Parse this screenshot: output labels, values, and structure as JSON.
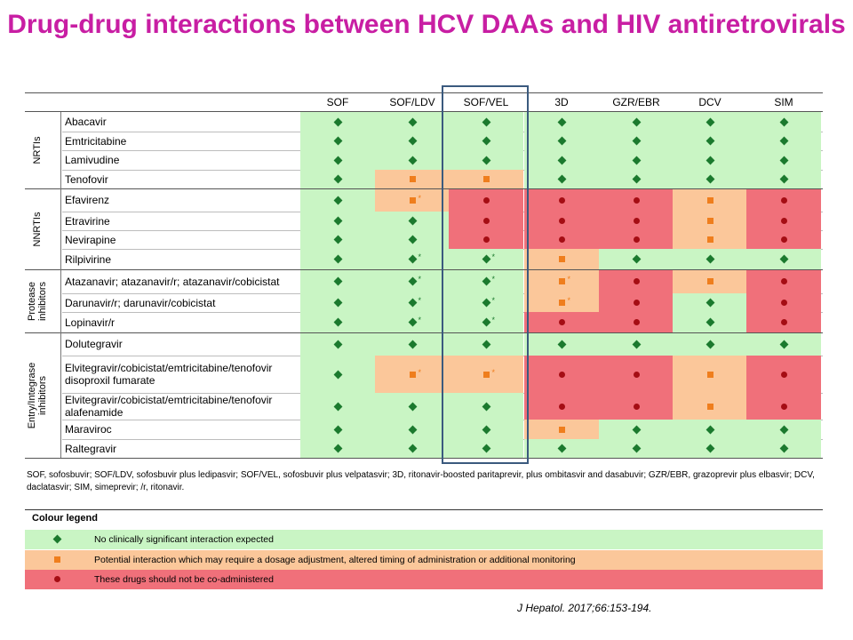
{
  "title": "Drug-drug interactions between HCV DAAs and HIV antiretrovirals",
  "columns": [
    "SOF",
    "SOF/LDV",
    "SOF/VEL",
    "3D",
    "GZR/EBR",
    "DCV",
    "SIM"
  ],
  "groups": [
    {
      "label": "NRTIs",
      "rows": [
        0,
        3
      ]
    },
    {
      "label": "NNRTIs",
      "rows": [
        4,
        7
      ]
    },
    {
      "label": "Protease\ninhibitors",
      "rows": [
        8,
        10
      ]
    },
    {
      "label": "Entry/Integrase\ninhibitors",
      "rows": [
        11,
        15
      ]
    }
  ],
  "rows": [
    {
      "drug": "Abacavir",
      "cells": [
        "G",
        "G",
        "G",
        "G",
        "G",
        "G",
        "G"
      ]
    },
    {
      "drug": "Emtricitabine",
      "cells": [
        "G",
        "G",
        "G",
        "G",
        "G",
        "G",
        "G"
      ]
    },
    {
      "drug": "Lamivudine",
      "cells": [
        "G",
        "G",
        "G",
        "G",
        "G",
        "G",
        "G"
      ]
    },
    {
      "drug": "Tenofovir",
      "cells": [
        "G",
        "O",
        "O",
        "G",
        "G",
        "G",
        "G"
      ]
    },
    {
      "drug": "Efavirenz",
      "cells": [
        "G",
        "O*",
        "R",
        "R",
        "R",
        "O",
        "R"
      ]
    },
    {
      "drug": "Etravirine",
      "cells": [
        "G",
        "G",
        "R",
        "R",
        "R",
        "O",
        "R"
      ]
    },
    {
      "drug": "Nevirapine",
      "cells": [
        "G",
        "G",
        "R",
        "R",
        "R",
        "O",
        "R"
      ]
    },
    {
      "drug": "Rilpivirine",
      "cells": [
        "G",
        "G*",
        "G*",
        "O",
        "G",
        "G",
        "G"
      ]
    },
    {
      "drug": "Atazanavir; atazanavir/r; atazanavir/cobicistat",
      "cells": [
        "G",
        "G*",
        "G*",
        "O*",
        "R",
        "O",
        "R"
      ]
    },
    {
      "drug": "Darunavir/r; darunavir/cobicistat",
      "cells": [
        "G",
        "G*",
        "G*",
        "O*",
        "R",
        "G",
        "R"
      ]
    },
    {
      "drug": "Lopinavir/r",
      "cells": [
        "G",
        "G*",
        "G*",
        "R",
        "R",
        "G",
        "R"
      ]
    },
    {
      "drug": "Dolutegravir",
      "cells": [
        "G",
        "G",
        "G",
        "G",
        "G",
        "G",
        "G"
      ]
    },
    {
      "drug": "Elvitegravir/cobicistat/emtricitabine/tenofovir\ndisoproxil fumarate",
      "cells": [
        "G",
        "O*",
        "O*",
        "R",
        "R",
        "O",
        "R"
      ]
    },
    {
      "drug": "Elvitegravir/cobicistat/emtricitabine/tenofovir\nalafenamide",
      "cells": [
        "G",
        "G",
        "G",
        "R",
        "R",
        "O",
        "R"
      ]
    },
    {
      "drug": "Maraviroc",
      "cells": [
        "G",
        "G",
        "G",
        "O",
        "G",
        "G",
        "G"
      ]
    },
    {
      "drug": "Raltegravir",
      "cells": [
        "G",
        "G",
        "G",
        "G",
        "G",
        "G",
        "G"
      ]
    }
  ],
  "abbreviations": "SOF, sofosbuvir; SOF/LDV, sofosbuvir plus ledipasvir; SOF/VEL, sofosbuvir plus velpatasvir; 3D, ritonavir-boosted paritaprevir, plus ombitasvir and dasabuvir; GZR/EBR, grazoprevir plus elbasvir; DCV, daclatasvir; SIM, simeprevir; /r, ritonavir.",
  "legend": {
    "title": "Colour legend",
    "items": [
      {
        "code": "G",
        "text": "No clinically significant interaction expected"
      },
      {
        "code": "O",
        "text": "Potential interaction which may require a dosage adjustment, altered timing of administration or additional monitoring"
      },
      {
        "code": "R",
        "text": "These drugs should not be co-administered"
      }
    ]
  },
  "citation": "J Hepatol. 2017;66:153-194.",
  "colors": {
    "green_bg": "#c9f5c4",
    "orange_bg": "#fbc79a",
    "red_bg": "#f0707a",
    "green_mark": "#1b7a2e",
    "orange_mark": "#ef7e1d",
    "red_mark": "#a50d14",
    "title": "#c81ea3"
  }
}
